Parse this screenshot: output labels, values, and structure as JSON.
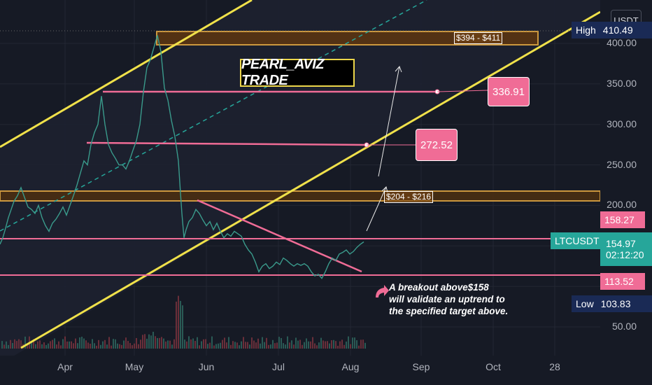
{
  "chart_data": {
    "type": "candlestick",
    "symbol": "LTCUSDT",
    "currency": "USDT",
    "title": "PEARL_AVIZ TRADE",
    "x_ticks": [
      "Apr",
      "May",
      "Jun",
      "Jul",
      "Aug",
      "Sep",
      "Oct",
      "28"
    ],
    "y_ticks": [
      50,
      100,
      150,
      200,
      250,
      300,
      350,
      400
    ],
    "y_tick_labels": [
      "50.00",
      "100.00",
      "150.00",
      "200.00",
      "250.00",
      "300.00",
      "350.00",
      "400.00"
    ],
    "ylim": [
      30,
      430
    ],
    "price_levels": {
      "high": {
        "label": "High",
        "value": "410.49"
      },
      "low": {
        "label": "Low",
        "value": "103.83"
      },
      "current": {
        "label": "LTCUSDT",
        "value": "154.97",
        "countdown": "02:12:20"
      },
      "resistance": "158.27",
      "support": "113.52"
    },
    "zones": [
      {
        "label": "$394 - $411",
        "low": 394,
        "high": 411
      },
      {
        "label": "$204 - $216",
        "low": 204,
        "high": 216
      }
    ],
    "targets": [
      "336.91",
      "272.52"
    ],
    "annotation": [
      "A breakout above$158",
      "will validate an uptrend to",
      "the specified target above."
    ],
    "series_path": [
      [
        0,
        152
      ],
      [
        4,
        160
      ],
      [
        8,
        172
      ],
      [
        12,
        185
      ],
      [
        16,
        195
      ],
      [
        20,
        205
      ],
      [
        25,
        212
      ],
      [
        30,
        222
      ],
      [
        35,
        210
      ],
      [
        40,
        198
      ],
      [
        45,
        195
      ],
      [
        50,
        190
      ],
      [
        55,
        200
      ],
      [
        60,
        185
      ],
      [
        65,
        175
      ],
      [
        70,
        168
      ],
      [
        75,
        178
      ],
      [
        80,
        183
      ],
      [
        85,
        190
      ],
      [
        90,
        198
      ],
      [
        95,
        188
      ],
      [
        100,
        200
      ],
      [
        105,
        212
      ],
      [
        110,
        225
      ],
      [
        115,
        240
      ],
      [
        120,
        255
      ],
      [
        125,
        250
      ],
      [
        130,
        275
      ],
      [
        135,
        290
      ],
      [
        140,
        300
      ],
      [
        145,
        335
      ],
      [
        150,
        300
      ],
      [
        155,
        275
      ],
      [
        160,
        265
      ],
      [
        165,
        258
      ],
      [
        170,
        250
      ],
      [
        175,
        250
      ],
      [
        180,
        245
      ],
      [
        185,
        255
      ],
      [
        190,
        268
      ],
      [
        195,
        280
      ],
      [
        200,
        300
      ],
      [
        205,
        340
      ],
      [
        210,
        370
      ],
      [
        215,
        380
      ],
      [
        220,
        395
      ],
      [
        225,
        410
      ],
      [
        230,
        390
      ],
      [
        235,
        345
      ],
      [
        240,
        330
      ],
      [
        245,
        305
      ],
      [
        250,
        285
      ],
      [
        255,
        255
      ],
      [
        258,
        215
      ],
      [
        260,
        190
      ],
      [
        263,
        160
      ],
      [
        266,
        170
      ],
      [
        270,
        180
      ],
      [
        275,
        185
      ],
      [
        280,
        195
      ],
      [
        285,
        190
      ],
      [
        290,
        182
      ],
      [
        295,
        175
      ],
      [
        300,
        180
      ],
      [
        305,
        170
      ],
      [
        310,
        178
      ],
      [
        315,
        168
      ],
      [
        320,
        160
      ],
      [
        325,
        165
      ],
      [
        330,
        162
      ],
      [
        335,
        168
      ],
      [
        340,
        165
      ],
      [
        345,
        162
      ],
      [
        350,
        152
      ],
      [
        355,
        145
      ],
      [
        360,
        140
      ],
      [
        365,
        130
      ],
      [
        370,
        118
      ],
      [
        375,
        125
      ],
      [
        380,
        128
      ],
      [
        385,
        122
      ],
      [
        390,
        125
      ],
      [
        395,
        130
      ],
      [
        400,
        127
      ],
      [
        405,
        135
      ],
      [
        410,
        132
      ],
      [
        415,
        128
      ],
      [
        420,
        125
      ],
      [
        425,
        128
      ],
      [
        430,
        126
      ],
      [
        435,
        128
      ],
      [
        440,
        125
      ],
      [
        445,
        118
      ],
      [
        450,
        113
      ],
      [
        455,
        115
      ],
      [
        460,
        110
      ],
      [
        465,
        118
      ],
      [
        470,
        128
      ],
      [
        475,
        135
      ],
      [
        480,
        132
      ],
      [
        485,
        140
      ],
      [
        490,
        142
      ],
      [
        495,
        145
      ],
      [
        500,
        140
      ],
      [
        505,
        143
      ],
      [
        510,
        148
      ],
      [
        515,
        152
      ],
      [
        520,
        155
      ]
    ]
  },
  "axis": {
    "currency": "USDT"
  },
  "zone_top_label": "$394 - $411",
  "zone_mid_label": "$204 - $216"
}
